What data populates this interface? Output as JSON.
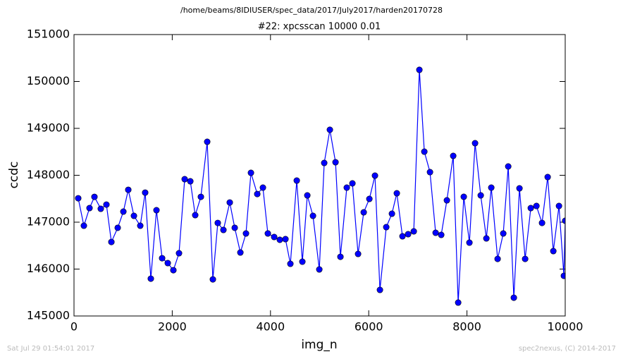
{
  "chart_data": {
    "type": "line",
    "suptitle": "/home/beams/8IDIUSER/spec_data/2017/July2017/harden20170728",
    "title": "#22: xpcsscan 10000 0.01",
    "xlabel": "img_n",
    "ylabel": "ccdc",
    "footer_left": "Sat Jul 29 01:54:01 2017",
    "footer_right": "spec2nexus, (C) 2014-2017",
    "color": "#0000ff",
    "x": [
      86,
      201,
      316,
      416,
      545,
      660,
      761,
      890,
      1005,
      1105,
      1220,
      1349,
      1449,
      1564,
      1679,
      1794,
      1909,
      2023,
      2138,
      2253,
      2368,
      2468,
      2583,
      2712,
      2827,
      2927,
      3042,
      3171,
      3272,
      3387,
      3501,
      3602,
      3731,
      3846,
      3946,
      4075,
      4190,
      4305,
      4405,
      4535,
      4649,
      4750,
      4865,
      4994,
      5094,
      5209,
      5324,
      5424,
      5553,
      5668,
      5783,
      5898,
      6013,
      6127,
      6228,
      6357,
      6472,
      6572,
      6687,
      6802,
      6917,
      7031,
      7132,
      7247,
      7362,
      7476,
      7591,
      7720,
      7821,
      7935,
      8050,
      8165,
      8280,
      8395,
      8495,
      8624,
      8739,
      8840,
      8954,
      9069,
      9184,
      9299,
      9414,
      9528,
      9643,
      9758,
      9873,
      9973,
      10000
    ],
    "values": [
      147510,
      146924,
      147300,
      147540,
      147285,
      147375,
      146578,
      146880,
      147225,
      147690,
      147135,
      146924,
      147630,
      145796,
      147255,
      146232,
      146127,
      145976,
      146338,
      147917,
      147872,
      147150,
      147540,
      148714,
      145781,
      146984,
      146834,
      147420,
      146880,
      146353,
      146759,
      148052,
      147600,
      147736,
      146759,
      146684,
      146624,
      146639,
      146112,
      147887,
      146157,
      147571,
      147135,
      145992,
      148263,
      148970,
      148278,
      146262,
      147736,
      147827,
      146323,
      147210,
      147496,
      147992,
      145556,
      146894,
      147180,
      147616,
      146699,
      146744,
      146804,
      150248,
      148503,
      148067,
      146774,
      146729,
      147466,
      148413,
      145285,
      147541,
      146563,
      148684,
      147571,
      146654,
      147736,
      146217,
      146759,
      148188,
      145390,
      147721,
      146217,
      147300,
      147345,
      146984,
      147962,
      146383,
      147345,
      145856,
      147030
    ],
    "xlim": [
      0,
      10000
    ],
    "xticks": [
      0,
      2000,
      4000,
      6000,
      8000,
      10000
    ],
    "ylim": [
      145000,
      151000
    ],
    "yticks": [
      145000,
      146000,
      147000,
      148000,
      149000,
      150000,
      151000
    ]
  }
}
